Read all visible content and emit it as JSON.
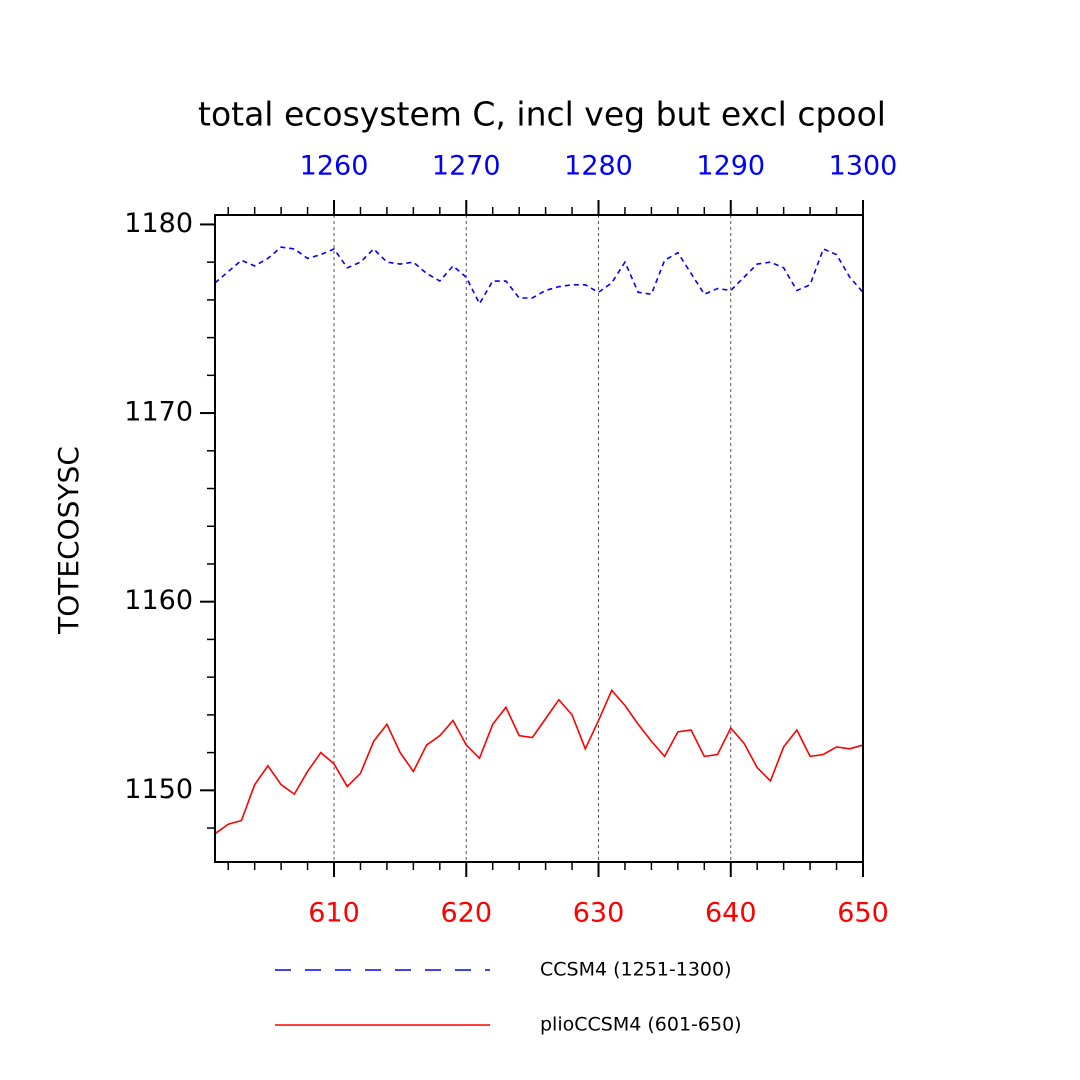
{
  "chart_data": {
    "type": "line",
    "title": "total ecosystem C, incl veg but excl cpool",
    "y_label": "TOTECOSYSC",
    "xlim": [
      601,
      650
    ],
    "xticks": [
      610,
      620,
      630,
      640,
      650
    ],
    "xminorticks": [
      602,
      604,
      606,
      608,
      610,
      612,
      614,
      616,
      618,
      620,
      622,
      624,
      626,
      628,
      630,
      632,
      634,
      636,
      638,
      640,
      642,
      644,
      646,
      648,
      650
    ],
    "x2lim": [
      1251,
      1300
    ],
    "x2ticks": [
      1260,
      1270,
      1280,
      1290,
      1300
    ],
    "x2minorticks": [
      1252,
      1254,
      1256,
      1258,
      1260,
      1262,
      1264,
      1266,
      1268,
      1270,
      1272,
      1274,
      1276,
      1278,
      1280,
      1282,
      1284,
      1286,
      1288,
      1290,
      1292,
      1294,
      1296,
      1298,
      1300
    ],
    "ylim": [
      1146.2,
      1180.5
    ],
    "yticks": [
      1150,
      1160,
      1170,
      1180
    ],
    "yminorticks": [
      1148,
      1150,
      1152,
      1154,
      1156,
      1158,
      1160,
      1162,
      1164,
      1166,
      1168,
      1170,
      1172,
      1174,
      1176,
      1178,
      1180
    ],
    "grid": "x",
    "x_color": "#ff0000",
    "x2_color": "#0000ff",
    "series": [
      {
        "name": "CCSM4 (1251-1300)",
        "color": "#0000ff",
        "dash": "dashed",
        "axis": "x2",
        "x": [
          1251,
          1252,
          1253,
          1254,
          1255,
          1256,
          1257,
          1258,
          1259,
          1260,
          1261,
          1262,
          1263,
          1264,
          1265,
          1266,
          1267,
          1268,
          1269,
          1270,
          1271,
          1272,
          1273,
          1274,
          1275,
          1276,
          1277,
          1278,
          1279,
          1280,
          1281,
          1282,
          1283,
          1284,
          1285,
          1286,
          1287,
          1288,
          1289,
          1290,
          1291,
          1292,
          1293,
          1294,
          1295,
          1296,
          1297,
          1298,
          1299,
          1300
        ],
        "values": [
          1176.9,
          1177.5,
          1178.1,
          1177.8,
          1178.2,
          1178.8,
          1178.7,
          1178.2,
          1178.4,
          1178.7,
          1177.7,
          1178.0,
          1178.7,
          1178.0,
          1177.9,
          1178.0,
          1177.4,
          1177.0,
          1177.8,
          1177.2,
          1175.8,
          1177.0,
          1177.0,
          1176.1,
          1176.1,
          1176.5,
          1176.7,
          1176.8,
          1176.8,
          1176.4,
          1176.9,
          1178.0,
          1176.4,
          1176.3,
          1178.1,
          1178.5,
          1177.4,
          1176.3,
          1176.6,
          1176.5,
          1177.2,
          1177.9,
          1178.0,
          1177.7,
          1176.5,
          1176.8,
          1178.7,
          1178.4,
          1177.2,
          1176.4
        ]
      },
      {
        "name": "plioCCSM4 (601-650)",
        "color": "#ff0000",
        "dash": "solid",
        "axis": "x",
        "x": [
          601,
          602,
          603,
          604,
          605,
          606,
          607,
          608,
          609,
          610,
          611,
          612,
          613,
          614,
          615,
          616,
          617,
          618,
          619,
          620,
          621,
          622,
          623,
          624,
          625,
          626,
          627,
          628,
          629,
          630,
          631,
          632,
          633,
          634,
          635,
          636,
          637,
          638,
          639,
          640,
          641,
          642,
          643,
          644,
          645,
          646,
          647,
          648,
          649,
          650
        ],
        "values": [
          1147.7,
          1148.2,
          1148.4,
          1150.3,
          1151.3,
          1150.3,
          1149.8,
          1151.0,
          1152.0,
          1151.4,
          1150.2,
          1150.9,
          1152.6,
          1153.5,
          1152.0,
          1151.0,
          1152.4,
          1152.9,
          1153.7,
          1152.4,
          1151.7,
          1153.5,
          1154.4,
          1152.9,
          1152.8,
          1153.8,
          1154.8,
          1154.0,
          1152.2,
          1153.7,
          1155.3,
          1154.5,
          1153.5,
          1152.6,
          1151.8,
          1153.1,
          1153.2,
          1151.8,
          1151.9,
          1153.3,
          1152.5,
          1151.2,
          1150.5,
          1152.3,
          1153.2,
          1151.8,
          1151.9,
          1152.3,
          1152.2,
          1152.4
        ]
      }
    ]
  }
}
